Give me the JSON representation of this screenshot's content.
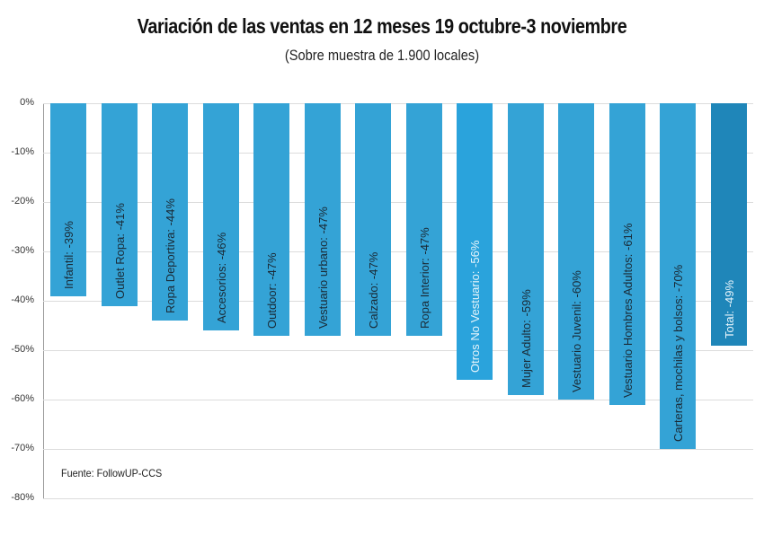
{
  "chart_data": {
    "type": "bar",
    "title": "Variación de las ventas en 12 meses 19 octubre-3 noviembre",
    "subtitle": "(Sobre muestra de 1.900 locales)",
    "xlabel": "",
    "ylabel": "",
    "ylim": [
      -80,
      0
    ],
    "yticks": [
      "0%",
      "-10%",
      "-20%",
      "-30%",
      "-40%",
      "-50%",
      "-60%",
      "-70%",
      "-80%"
    ],
    "grid": true,
    "legend": null,
    "source": "Fuente: FollowUP-CCS",
    "categories": [
      "Infantil",
      "Outlet Ropa",
      "Ropa Deportiva",
      "Accesorios",
      "Outdoor",
      "Vestuario urbano",
      "Calzado",
      "Ropa Interior",
      "Otros No Vestuario",
      "Mujer Adulto",
      "Vestuario Juvenil",
      "Vestuario Hombres Adultos",
      "Carteras, mochilas y bolsos",
      "Total"
    ],
    "values": [
      -39,
      -41,
      -44,
      -46,
      -47,
      -47,
      -47,
      -47,
      -56,
      -59,
      -60,
      -61,
      -70,
      -49
    ],
    "labels": [
      "Infantil: -39%",
      "Outlet Ropa: -41%",
      "Ropa Deportiva: -44%",
      "Accesorios: -46%",
      "Outdoor: -47%",
      "Vestuario urbano: -47%",
      "Calzado: -47%",
      "Ropa Interior: -47%",
      "Otros No Vestuario: -56%",
      "Mujer Adulto: -59%",
      "Vestuario Juvenil: -60%",
      "Vestuario Hombres Adultos: -61%",
      "Carteras, mochilas y bolsos: -70%",
      "Total: -49%"
    ],
    "colors": {
      "bar": "#34a3d6",
      "highlight": "#2aa3dc",
      "total": "#1f86b9"
    }
  }
}
